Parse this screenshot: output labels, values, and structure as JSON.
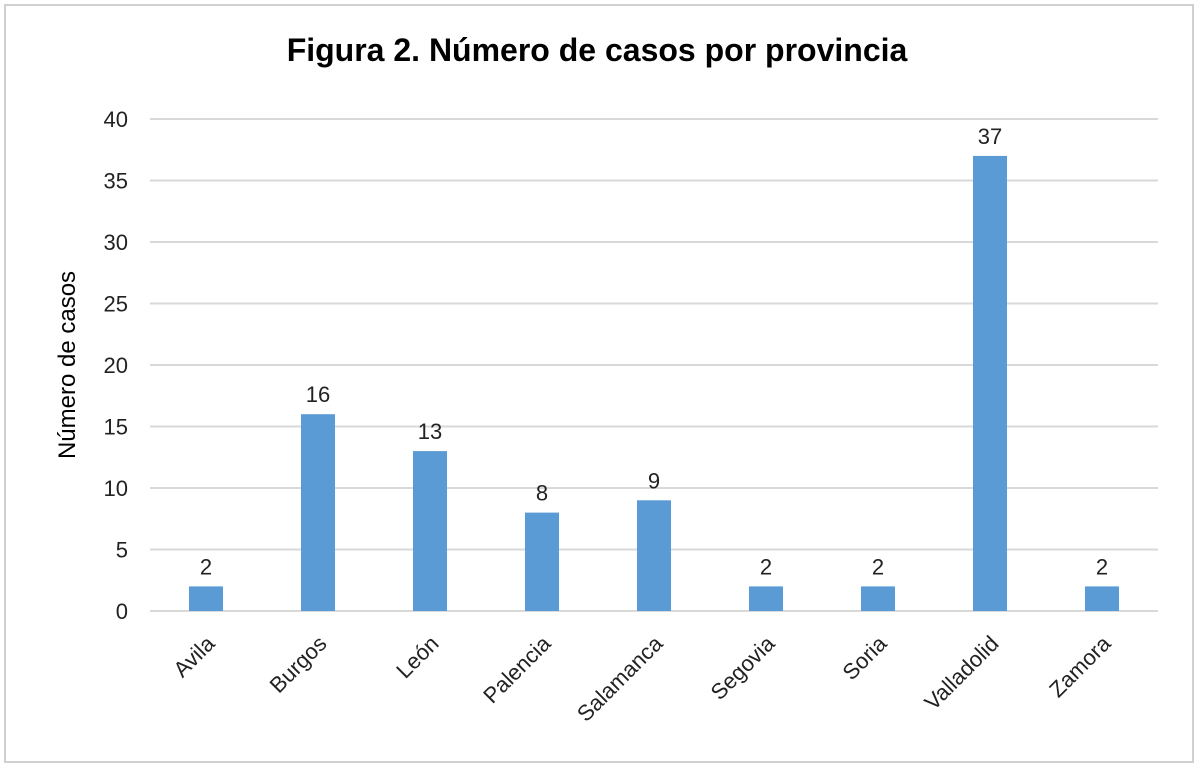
{
  "chart_data": {
    "type": "bar",
    "title": "Figura 2. Número de casos por provincia",
    "xlabel": "",
    "ylabel": "Número de casos",
    "categories": [
      "Avila",
      "Burgos",
      "León",
      "Palencia",
      "Salamanca",
      "Segovia",
      "Soria",
      "Valladolid",
      "Zamora"
    ],
    "values": [
      2,
      16,
      13,
      8,
      9,
      2,
      2,
      37,
      2
    ],
    "ylim": [
      0,
      40
    ],
    "yticks": [
      0,
      5,
      10,
      15,
      20,
      25,
      30,
      35,
      40
    ],
    "grid": true,
    "legend": "none",
    "bar_color": "#5b9bd5",
    "grid_color": "#d9d9d9"
  }
}
